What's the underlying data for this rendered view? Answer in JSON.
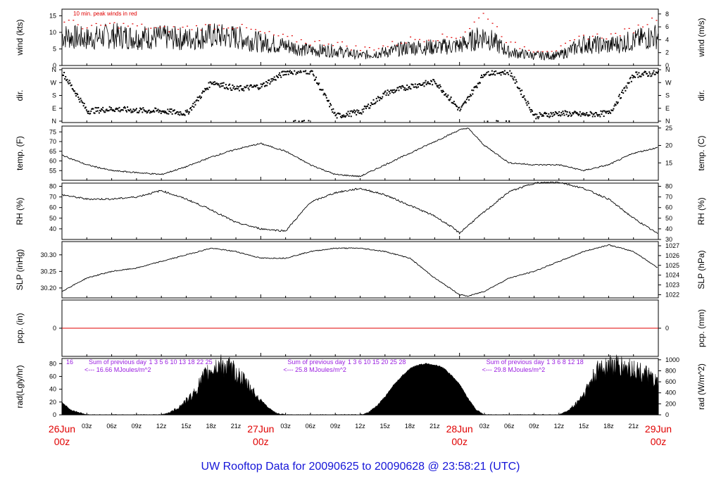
{
  "title": "UW Rooftop Data for 20090625  to  20090628 @ 23:58:21  (UTC)",
  "colors": {
    "title": "#1515d8",
    "date": "#e00000",
    "note": "#e00000",
    "purple": "#9a1ee0",
    "line": "#000000",
    "zero": "#e00000"
  },
  "chart_data": [
    {
      "type": "line",
      "name": "wind",
      "ylabel_left": "wind (kts)",
      "ylabel_right": "wind (m/s)",
      "ylim": [
        0,
        17
      ],
      "yticks_left": [
        0,
        5,
        10,
        15
      ],
      "yticks_right": [
        0,
        2,
        4,
        6,
        8
      ],
      "right_scale": "m/s",
      "annotation": "10 min. peak winds in red",
      "series": [
        {
          "x": [
            0,
            3,
            6,
            9,
            12,
            15,
            18,
            21,
            24,
            27,
            30,
            33,
            36,
            39,
            42,
            45,
            48,
            51,
            54,
            57,
            60,
            63,
            66,
            69,
            72
          ],
          "values": [
            9,
            8,
            9,
            8.5,
            8.5,
            8,
            9,
            8.5,
            7,
            6,
            4.5,
            4.5,
            3,
            4,
            5.5,
            5.5,
            6,
            9,
            4,
            3,
            3,
            6.5,
            6,
            7.5,
            9
          ]
        },
        {
          "name": "10 min. peak winds",
          "x": [
            0,
            3,
            6,
            9,
            12,
            15,
            18,
            21,
            24,
            27,
            30,
            33,
            36,
            39,
            42,
            45,
            48,
            51,
            54,
            57,
            60,
            63,
            66,
            69,
            72
          ],
          "values": [
            14,
            11.5,
            12.5,
            12,
            11,
            11.5,
            12,
            12,
            10,
            8.5,
            7,
            7,
            5,
            6,
            8,
            8.5,
            9,
            16,
            6.5,
            5,
            5,
            9,
            9,
            11,
            15
          ]
        }
      ]
    },
    {
      "type": "scatter",
      "name": "dir",
      "ylabel_left": "dir.",
      "ylabel_right": "dir.",
      "yticks_left": [
        "N",
        "E",
        "S",
        "W",
        "N"
      ],
      "yticks_right": [
        "N",
        "E",
        "S",
        "W",
        "N"
      ],
      "series": [
        {
          "x": [
            0,
            3,
            6,
            9,
            12,
            15,
            18,
            21,
            24,
            27,
            30,
            33,
            36,
            39,
            42,
            45,
            48,
            51,
            54,
            57,
            60,
            63,
            66,
            69,
            72
          ],
          "values": [
            345,
            75,
            90,
            80,
            75,
            60,
            280,
            230,
            250,
            350,
            355,
            40,
            70,
            200,
            250,
            280,
            80,
            345,
            350,
            40,
            60,
            50,
            60,
            330,
            340
          ]
        }
      ]
    },
    {
      "type": "line",
      "name": "temp",
      "ylabel_left": "temp. (F)",
      "ylabel_right": "temp. (C)",
      "ylim": [
        50,
        78
      ],
      "yticks_left": [
        55,
        60,
        65,
        70,
        75
      ],
      "yticks_right": [
        15,
        20,
        25
      ],
      "right_scale": "C",
      "series": [
        {
          "x": [
            0,
            3,
            6,
            9,
            12,
            15,
            18,
            21,
            24,
            27,
            30,
            33,
            36,
            39,
            42,
            45,
            48,
            49,
            51,
            54,
            57,
            60,
            63,
            66,
            69,
            72
          ],
          "values": [
            63,
            58,
            55,
            54,
            53,
            57,
            62,
            66,
            69,
            65,
            58,
            53,
            52,
            58,
            64,
            70,
            76,
            77,
            68,
            59,
            58,
            58,
            55,
            58,
            64,
            67
          ]
        }
      ]
    },
    {
      "type": "line",
      "name": "RH",
      "ylabel_left": "RH (%)",
      "ylabel_right": "RH (%)",
      "ylim": [
        30,
        83
      ],
      "yticks_left": [
        40,
        50,
        60,
        70,
        80
      ],
      "yticks_right": [
        30,
        40,
        50,
        60,
        70,
        80
      ],
      "series": [
        {
          "x": [
            0,
            3,
            6,
            9,
            12,
            15,
            18,
            21,
            24,
            27,
            30,
            33,
            36,
            39,
            42,
            45,
            47,
            48,
            49,
            51,
            54,
            57,
            60,
            63,
            66,
            69,
            72
          ],
          "values": [
            72,
            68,
            68,
            70,
            76,
            68,
            58,
            46,
            40,
            38,
            65,
            74,
            78,
            72,
            62,
            52,
            42,
            36,
            43,
            56,
            75,
            83,
            84,
            78,
            68,
            50,
            35
          ]
        }
      ]
    },
    {
      "type": "line",
      "name": "SLP",
      "ylabel_left": "SLP (inHg)",
      "ylabel_right": "SLP (hPa)",
      "ylim": [
        30.17,
        30.34
      ],
      "yticks_left": [
        "30.20",
        "30.25",
        "30.30"
      ],
      "yticks_right": [
        1022,
        1023,
        1024,
        1025,
        1026,
        1027
      ],
      "right_scale": "hPa",
      "series": [
        {
          "x": [
            0,
            3,
            6,
            9,
            12,
            15,
            18,
            21,
            24,
            27,
            30,
            33,
            36,
            39,
            42,
            45,
            48,
            49,
            51,
            54,
            57,
            60,
            63,
            66,
            69,
            72
          ],
          "values": [
            30.19,
            30.23,
            30.25,
            30.26,
            30.28,
            30.3,
            30.32,
            30.31,
            30.29,
            30.29,
            30.31,
            30.32,
            30.32,
            30.31,
            30.29,
            30.23,
            30.18,
            30.175,
            30.19,
            30.23,
            30.25,
            30.28,
            30.31,
            30.33,
            30.31,
            30.26
          ]
        }
      ]
    },
    {
      "type": "line",
      "name": "pcp",
      "ylabel_left": "pcp. (in)",
      "ylabel_right": "pcp. (mm)",
      "yticks_left": [
        0
      ],
      "yticks_right": [
        0
      ],
      "series": [
        {
          "x": [
            0,
            72
          ],
          "values": [
            0,
            0
          ]
        }
      ]
    },
    {
      "type": "area",
      "name": "rad",
      "ylabel_left": "rad(Lgly/hr)",
      "ylabel_right": "rad (W/m^2)",
      "ylim": [
        0,
        88
      ],
      "yticks_left": [
        0,
        20,
        40,
        60,
        80
      ],
      "yticks_right": [
        0,
        200,
        400,
        600,
        800,
        1000
      ],
      "right_scale": "W/m^2",
      "daily_totals": [
        {
          "header": "Sum of previous day",
          "value": "<--- 16.66 MJoules/m^2",
          "hours": "1   3    5   6  10   13   18   22    25",
          "start": "16"
        },
        {
          "header": "Sum of previous day",
          "value": "<--- 25.8 MJoules/m^2",
          "hours": "1   3    6   10    15   20   25   28"
        },
        {
          "header": "Sum of previous day",
          "value": "<--- 29.8 MJoules/m^2",
          "hours": "1   3    6    8   12      18"
        }
      ],
      "series": [
        {
          "x": [
            0,
            1,
            2,
            3,
            12,
            13,
            14,
            15,
            16,
            17,
            18,
            19,
            20,
            21,
            22,
            23,
            24,
            25,
            26,
            27,
            36,
            37,
            38,
            39,
            40,
            41,
            42,
            43,
            44,
            45,
            46,
            47,
            48,
            49,
            50,
            51,
            60,
            61,
            62,
            63,
            64,
            65,
            66,
            67,
            68,
            69,
            70,
            71,
            72
          ],
          "values": [
            20,
            8,
            4,
            0,
            0,
            4,
            12,
            24,
            38,
            62,
            78,
            85,
            82,
            72,
            58,
            42,
            24,
            10,
            2,
            0,
            0,
            4,
            14,
            28,
            46,
            60,
            72,
            78,
            80,
            78,
            74,
            62,
            48,
            26,
            8,
            0,
            0,
            6,
            18,
            36,
            60,
            82,
            85,
            84,
            82,
            78,
            72,
            64,
            52
          ]
        }
      ]
    }
  ],
  "x_axis": {
    "tick_labels": [
      "03z",
      "06z",
      "09z",
      "12z",
      "15z",
      "18z",
      "21z",
      "03z",
      "06z",
      "09z",
      "12z",
      "15z",
      "18z",
      "21z",
      "03z",
      "06z",
      "09z",
      "12z",
      "15z",
      "18z",
      "21z"
    ],
    "days": [
      {
        "date": "26Jun",
        "hour": "00z"
      },
      {
        "date": "27Jun",
        "hour": "00z"
      },
      {
        "date": "28Jun",
        "hour": "00z"
      },
      {
        "date": "29Jun",
        "hour": "00z"
      }
    ]
  }
}
